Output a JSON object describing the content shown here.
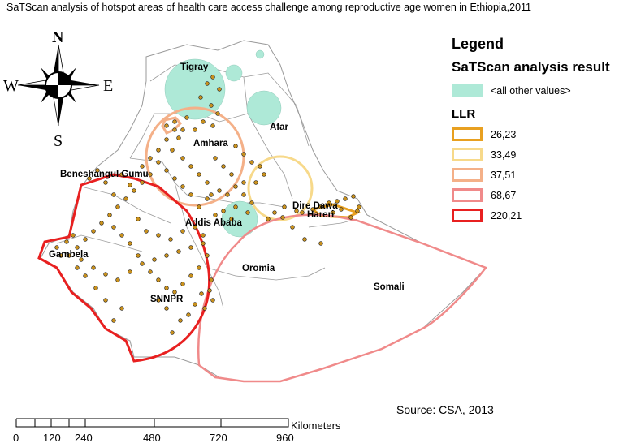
{
  "title": "SaTScan analysis of hotspot areas of health care access challenge  among reproductive age women in Ethiopia,2011",
  "compass": {
    "n": "N",
    "s": "S",
    "e": "E",
    "w": "W"
  },
  "regions": {
    "tigray": "Tigray",
    "afar": "Afar",
    "amhara": "Amhara",
    "benishangul": "Beneshangul Gumu",
    "gambela": "Gambela",
    "snnpr": "SNNPR",
    "oromia": "Oromia",
    "somali": "Somali",
    "addis": "Addis Ababa",
    "diredawa": "Dire Dawa",
    "harari": "Hareri"
  },
  "legend": {
    "title": "Legend",
    "subtitle": "SaTScan analysis result",
    "fill_label": "<all other values>",
    "fill_color": "#aee9d7",
    "llr_title": "LLR",
    "items": [
      {
        "label": "26,23",
        "color": "#e8a020"
      },
      {
        "label": "33,49",
        "color": "#f7d98a"
      },
      {
        "label": "37,51",
        "color": "#f4b088"
      },
      {
        "label": "68,67",
        "color": "#f08a8a"
      },
      {
        "label": "220,21",
        "color": "#e82020"
      }
    ]
  },
  "scalebar": {
    "unit": "Kilometers",
    "ticks": [
      "0",
      "120",
      "240",
      "480",
      "720",
      "960"
    ]
  },
  "source": "Source: CSA, 2013"
}
